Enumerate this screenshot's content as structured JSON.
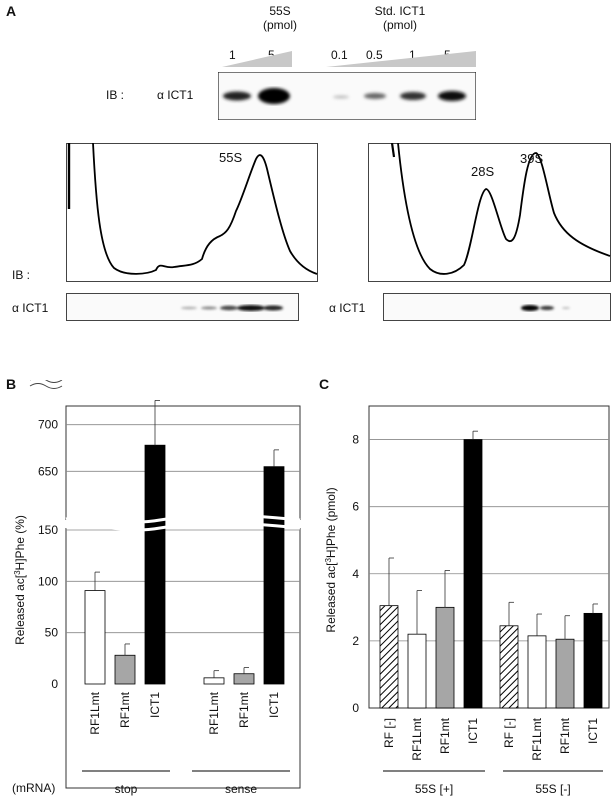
{
  "panel_a": {
    "letter": "A",
    "sample_label_line1": "55S",
    "sample_label_line2": "(pmol)",
    "std_label_line1": "Std. ICT1",
    "std_label_line2": "(pmol)",
    "sample_amounts": [
      "1",
      "5"
    ],
    "std_amounts": [
      "0.1",
      "0.5",
      "1",
      "5"
    ],
    "ib_label": "IB :",
    "blot_label": "α ICT1",
    "left_profile_peak": "55S",
    "right_profile_peaks": [
      "28S",
      "39S"
    ],
    "left_blot_label": "α ICT1",
    "right_blot_label": "α ICT1"
  },
  "chart_data": [
    {
      "type": "bar",
      "panel": "B",
      "ylabel": "Released ac[3H]Phe (%)",
      "ylabel_main": "Released ac[",
      "ylabel_sup": "3",
      "ylabel_end": "H]Phe (%)",
      "y_ticks_lower": [
        "0",
        "50",
        "100",
        "150"
      ],
      "y_ticks_upper": [
        "650",
        "700"
      ],
      "axis_break": true,
      "categories": [
        "RF1Lmt",
        "RF1mt",
        "ICT1",
        "RF1Lmt",
        "RF1mt",
        "ICT1"
      ],
      "values": [
        91,
        28,
        678,
        6,
        10,
        655
      ],
      "errors": [
        18,
        11,
        48,
        7,
        6,
        18
      ],
      "colors": [
        "#ffffff",
        "#a6a6a6",
        "#000000",
        "#ffffff",
        "#a6a6a6",
        "#000000"
      ],
      "groups": [
        {
          "label": "stop"
        },
        {
          "label": "sense"
        }
      ],
      "group_row_label": "(mRNA)"
    },
    {
      "type": "bar",
      "panel": "C",
      "ylabel": "Released ac[3H]Phe (pmol)",
      "ylabel_main": "Released ac[",
      "ylabel_sup": "3",
      "ylabel_end": "H]Phe (pmol)",
      "ylim": [
        0,
        9
      ],
      "y_ticks": [
        "0",
        "2",
        "4",
        "6",
        "8"
      ],
      "categories": [
        "RF [-]",
        "RF1Lmt",
        "RF1mt",
        "ICT1",
        "RF [-]",
        "RF1Lmt",
        "RF1mt",
        "ICT1"
      ],
      "values": [
        3.05,
        2.2,
        3.0,
        8.0,
        2.45,
        2.15,
        2.05,
        2.82
      ],
      "errors": [
        1.42,
        1.3,
        1.1,
        0.25,
        0.7,
        0.65,
        0.7,
        0.28
      ],
      "fills": [
        "hatch",
        "#ffffff",
        "#a6a6a6",
        "#000000",
        "hatch",
        "#ffffff",
        "#a6a6a6",
        "#000000"
      ],
      "groups": [
        {
          "label": "55S [+]"
        },
        {
          "label": "55S [-]"
        }
      ]
    }
  ]
}
